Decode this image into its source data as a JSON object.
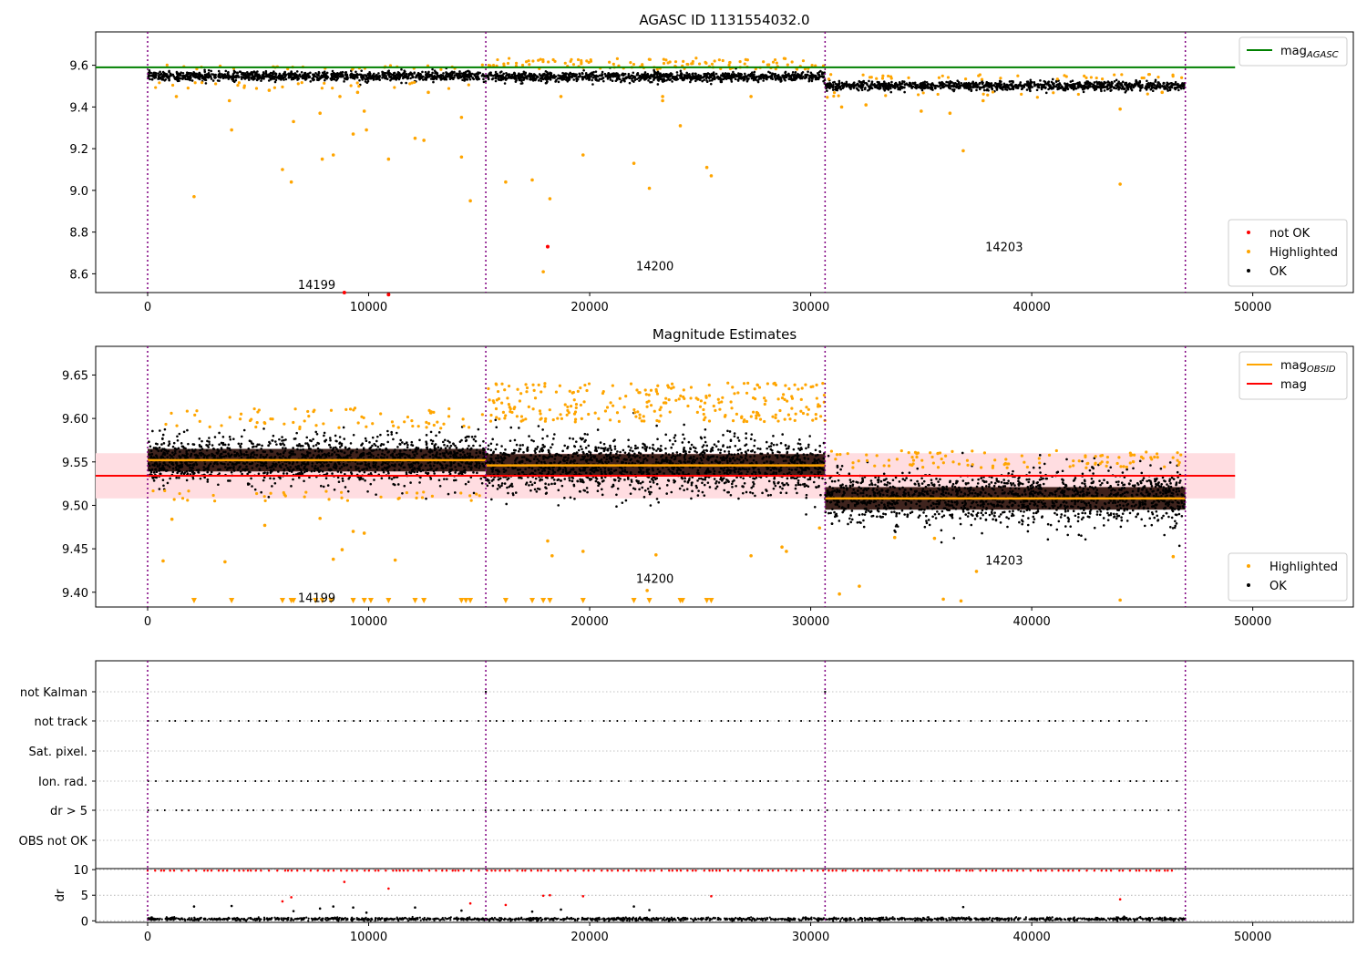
{
  "figure": {
    "title": "AGASC ID 1131554032.0",
    "colors": {
      "ok": "#000000",
      "highlighted": "#ffa500",
      "not_ok": "#ff0000",
      "mag_agasc": "#008000",
      "mag_obsid": "#ffa500",
      "mag": "#ff0000",
      "mag_band": "#ffdde1",
      "obs_boundary": "#800080",
      "grid": "#b0b0b0"
    }
  },
  "chart_data": [
    {
      "type": "scatter",
      "title": "",
      "xlim": [
        -2350,
        54550
      ],
      "ylim": [
        8.51,
        9.76
      ],
      "x_ticks": [
        0,
        10000,
        20000,
        30000,
        40000,
        50000
      ],
      "y_ticks": [
        8.6,
        8.8,
        9.0,
        9.2,
        9.4,
        9.6
      ],
      "y_tick_labels": [
        "8.6",
        "8.8",
        "9.0",
        "9.2",
        "9.4",
        "9.6"
      ],
      "obs_boundaries": [
        0,
        15300,
        30650,
        46950
      ],
      "obsid_labels": [
        {
          "text": "14199",
          "x": 7650,
          "y": 8.55
        },
        {
          "text": "14200",
          "x": 22950,
          "y": 8.64
        },
        {
          "text": "14203",
          "x": 38750,
          "y": 8.73
        }
      ],
      "mag_agasc": {
        "value": 9.59,
        "x_range": [
          -2350,
          49200
        ]
      },
      "series": [
        {
          "name": "not OK",
          "points": [
            [
              18100,
              8.73
            ],
            [
              8900,
              8.51
            ],
            [
              10900,
              8.5
            ]
          ]
        },
        {
          "name": "Highlighted",
          "points": [
            [
              2100,
              8.97
            ],
            [
              3800,
              9.29
            ],
            [
              6100,
              9.1
            ],
            [
              6500,
              9.04
            ],
            [
              6600,
              9.33
            ],
            [
              7900,
              9.15
            ],
            [
              8400,
              9.17
            ],
            [
              7800,
              9.37
            ],
            [
              9300,
              9.27
            ],
            [
              9900,
              9.29
            ],
            [
              9800,
              9.38
            ],
            [
              10900,
              9.15
            ],
            [
              12100,
              9.25
            ],
            [
              12500,
              9.24
            ],
            [
              14200,
              9.16
            ],
            [
              14200,
              9.35
            ],
            [
              14600,
              8.95
            ],
            [
              16200,
              9.04
            ],
            [
              17400,
              9.05
            ],
            [
              17900,
              8.61
            ],
            [
              18200,
              8.96
            ],
            [
              19700,
              9.17
            ],
            [
              22000,
              9.13
            ],
            [
              22700,
              9.01
            ],
            [
              23300,
              9.43
            ],
            [
              24100,
              9.31
            ],
            [
              25300,
              9.11
            ],
            [
              25500,
              9.07
            ],
            [
              31400,
              9.4
            ],
            [
              32500,
              9.41
            ],
            [
              35000,
              9.38
            ],
            [
              36300,
              9.37
            ],
            [
              36900,
              9.19
            ],
            [
              44000,
              9.03
            ],
            [
              44000,
              9.39
            ],
            [
              1300,
              9.45
            ],
            [
              3700,
              9.43
            ],
            [
              5500,
              9.48
            ],
            [
              8700,
              9.45
            ],
            [
              9500,
              9.47
            ],
            [
              12700,
              9.47
            ],
            [
              18700,
              9.45
            ],
            [
              23300,
              9.45
            ],
            [
              27300,
              9.45
            ],
            [
              37800,
              9.43
            ],
            [
              45900,
              9.47
            ]
          ]
        },
        {
          "name": "OK",
          "points": []
        }
      ],
      "legends": [
        {
          "position": "top-right",
          "entries": [
            {
              "label": "mag",
              "sub": "AGASC",
              "marker": "line",
              "color_key": "mag_agasc"
            }
          ]
        },
        {
          "position": "bottom-right",
          "entries": [
            {
              "label": "not OK",
              "marker": "dot",
              "color_key": "not_ok"
            },
            {
              "label": "Highlighted",
              "marker": "dot",
              "color_key": "highlighted"
            },
            {
              "label": "OK",
              "marker": "dot",
              "color_key": "ok"
            }
          ]
        }
      ]
    },
    {
      "type": "scatter",
      "title": "Magnitude Estimates",
      "xlim": [
        -2350,
        54550
      ],
      "ylim": [
        9.383,
        9.683
      ],
      "x_ticks": [
        0,
        10000,
        20000,
        30000,
        40000,
        50000
      ],
      "y_ticks": [
        9.4,
        9.45,
        9.5,
        9.55,
        9.6,
        9.65
      ],
      "y_tick_labels": [
        "9.40",
        "9.45",
        "9.50",
        "9.55",
        "9.60",
        "9.65"
      ],
      "obs_boundaries": [
        0,
        15300,
        30650,
        46950
      ],
      "obsid_labels": [
        {
          "text": "14199",
          "x": 7650,
          "y": 9.394
        },
        {
          "text": "14200",
          "x": 22950,
          "y": 9.416
        },
        {
          "text": "14203",
          "x": 38750,
          "y": 9.437
        }
      ],
      "mag": {
        "value": 9.534,
        "band": [
          9.508,
          9.56
        ],
        "x_range": [
          -2350,
          49200
        ]
      },
      "mag_obsid": [
        {
          "x_range": [
            0,
            15300
          ],
          "value": 9.552
        },
        {
          "x_range": [
            15300,
            30650
          ],
          "value": 9.546
        },
        {
          "x_range": [
            30650,
            46950
          ],
          "value": 9.508
        }
      ],
      "series": [
        {
          "name": "Highlighted",
          "points": [
            [
              700,
              9.436
            ],
            [
              3500,
              9.435
            ],
            [
              5300,
              9.477
            ],
            [
              7800,
              9.485
            ],
            [
              8400,
              9.438
            ],
            [
              8800,
              9.449
            ],
            [
              9300,
              9.47
            ],
            [
              9800,
              9.468
            ],
            [
              11200,
              9.437
            ],
            [
              18100,
              9.459
            ],
            [
              18300,
              9.442
            ],
            [
              19700,
              9.447
            ],
            [
              23000,
              9.443
            ],
            [
              27300,
              9.442
            ],
            [
              28700,
              9.452
            ],
            [
              28900,
              9.447
            ],
            [
              31300,
              9.398
            ],
            [
              32200,
              9.407
            ],
            [
              33800,
              9.463
            ],
            [
              35600,
              9.462
            ],
            [
              36000,
              9.392
            ],
            [
              36800,
              9.39
            ],
            [
              37500,
              9.424
            ],
            [
              44000,
              9.391
            ],
            [
              46400,
              9.441
            ],
            [
              22600,
              9.402
            ],
            [
              1100,
              9.484
            ],
            [
              30400,
              9.474
            ]
          ]
        },
        {
          "name": "OK",
          "points": []
        }
      ],
      "down_arrows_x": [
        2100,
        3800,
        6100,
        6500,
        6600,
        7600,
        7900,
        8300,
        9300,
        9800,
        10100,
        10900,
        12100,
        12500,
        14200,
        14400,
        14600,
        16200,
        17400,
        17900,
        18200,
        19700,
        22000,
        22700,
        24100,
        24200,
        25300,
        25500
      ],
      "legends": [
        {
          "position": "top-right",
          "entries": [
            {
              "label": "mag",
              "sub": "OBSID",
              "marker": "line",
              "color_key": "mag_obsid"
            },
            {
              "label": "mag",
              "marker": "line",
              "color_key": "mag"
            }
          ]
        },
        {
          "position": "bottom-right",
          "entries": [
            {
              "label": "Highlighted",
              "marker": "dot",
              "color_key": "highlighted"
            },
            {
              "label": "OK",
              "marker": "dot",
              "color_key": "ok"
            }
          ]
        }
      ]
    },
    {
      "type": "scatter",
      "title": "",
      "xlim": [
        -2350,
        54550
      ],
      "categories": [
        "not Kalman",
        "not track",
        "Sat. pixel.",
        "Ion. rad.",
        "dr > 5",
        "OBS not OK"
      ],
      "obs_boundaries": [
        0,
        15300,
        30650,
        46950
      ],
      "flag_rows": [
        {
          "category": "not track",
          "x_range": [
            0,
            45200
          ]
        },
        {
          "category": "Ion. rad.",
          "x_range": [
            0,
            46700
          ]
        },
        {
          "category": "dr > 5",
          "x_range": [
            0,
            46700
          ]
        }
      ]
    },
    {
      "type": "scatter",
      "title": "",
      "xlim": [
        -2350,
        54550
      ],
      "ylim": [
        -0.3,
        10.2
      ],
      "ylabel": "dr",
      "x_ticks": [
        0,
        10000,
        20000,
        30000,
        40000,
        50000
      ],
      "x_tick_labels": [
        "0",
        "10000",
        "20000",
        "30000",
        "40000",
        "50000"
      ],
      "y_ticks": [
        0,
        5,
        10
      ],
      "y_tick_labels": [
        "0",
        "5",
        "10"
      ],
      "obs_boundaries": [
        0,
        15300,
        30650,
        46950
      ],
      "series": [
        {
          "name": "dr > 5",
          "color_key": "not_ok",
          "cap_value": 9.8,
          "x_range": [
            0,
            46700
          ],
          "extra_points": [
            [
              6100,
              3.8
            ],
            [
              6500,
              4.6
            ],
            [
              8900,
              7.6
            ],
            [
              10900,
              6.3
            ],
            [
              14600,
              3.4
            ],
            [
              16200,
              3.1
            ],
            [
              17900,
              4.9
            ],
            [
              18200,
              5.0
            ],
            [
              19700,
              4.8
            ],
            [
              25500,
              4.8
            ],
            [
              44000,
              4.2
            ]
          ]
        },
        {
          "name": "dr",
          "color_key": "ok",
          "base_value": 0.35,
          "x_range": [
            0,
            46950
          ],
          "extra_points": [
            [
              2100,
              2.8
            ],
            [
              3800,
              2.9
            ],
            [
              6600,
              1.9
            ],
            [
              7800,
              2.4
            ],
            [
              8400,
              2.8
            ],
            [
              9300,
              2.6
            ],
            [
              9900,
              1.6
            ],
            [
              12100,
              2.6
            ],
            [
              14200,
              2.0
            ],
            [
              17400,
              1.8
            ],
            [
              18700,
              2.2
            ],
            [
              22000,
              2.8
            ],
            [
              22700,
              2.1
            ],
            [
              36900,
              2.7
            ]
          ]
        }
      ]
    }
  ]
}
